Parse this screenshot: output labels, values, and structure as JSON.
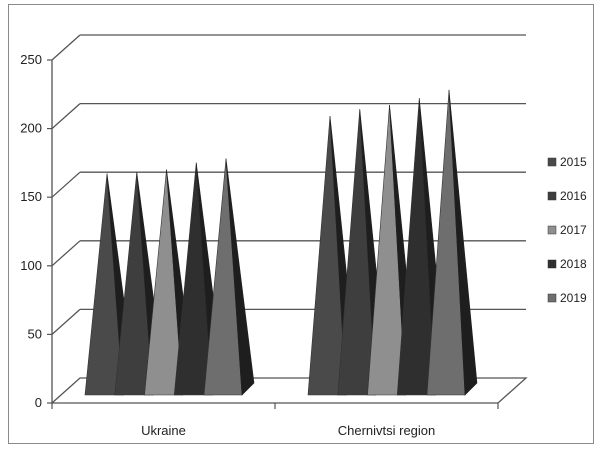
{
  "chart_data": {
    "type": "bar",
    "style": "3d-pyramid",
    "categories": [
      "Ukraine",
      "Chernivtsi region"
    ],
    "series": [
      {
        "name": "2015",
        "values": [
          157,
          199
        ],
        "color": "#4a4a4a"
      },
      {
        "name": "2016",
        "values": [
          158,
          204
        ],
        "color": "#3e3e3e"
      },
      {
        "name": "2017",
        "values": [
          160,
          207
        ],
        "color": "#8f8f8f"
      },
      {
        "name": "2018",
        "values": [
          165,
          212
        ],
        "color": "#2f2f2f"
      },
      {
        "name": "2019",
        "values": [
          168,
          218
        ],
        "color": "#6e6e6e"
      }
    ],
    "title": "",
    "xlabel": "",
    "ylabel": "",
    "ylim": [
      0,
      250
    ],
    "yticks": [
      "0",
      "50",
      "100",
      "150",
      "200",
      "250"
    ],
    "grid": true,
    "legend_position": "right"
  }
}
